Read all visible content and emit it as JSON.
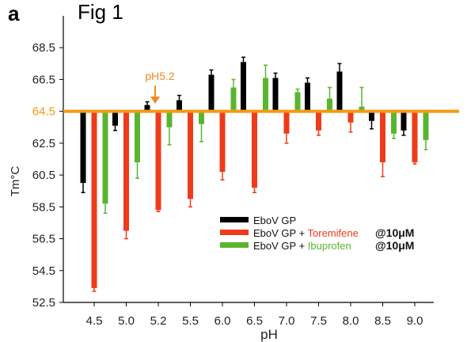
{
  "panel_label": "a",
  "figure_title": "Fig 1",
  "chart_data": {
    "type": "bar",
    "xlabel": "pH",
    "ylabel": "Tm°C",
    "ylim": [
      52.5,
      70.5
    ],
    "baseline": 64.5,
    "yticks": [
      "68.5",
      "66.5",
      "64.5",
      "62.5",
      "60.5",
      "58.5",
      "56.5",
      "54.5",
      "52.5"
    ],
    "categories": [
      "4.5",
      "5.0",
      "5.2",
      "5.5",
      "6.0",
      "6.5",
      "7.0",
      "7.5",
      "8.0",
      "8.5",
      "9.0"
    ],
    "series": [
      {
        "name": "EboV GP",
        "color": "#000000",
        "values": [
          60.0,
          63.6,
          64.9,
          65.2,
          66.8,
          67.6,
          66.6,
          66.3,
          67.0,
          63.9,
          63.3
        ],
        "errors": [
          0.6,
          0.3,
          0.2,
          0.3,
          0.3,
          0.3,
          0.3,
          0.3,
          0.5,
          0.5,
          0.3
        ]
      },
      {
        "name": "EboV GP + Toremifene",
        "color": "#ee3b1b",
        "values": [
          53.4,
          57.0,
          58.3,
          59.0,
          60.7,
          59.7,
          63.1,
          63.3,
          63.8,
          61.3,
          61.3
        ],
        "errors": [
          0.2,
          0.5,
          0.1,
          0.5,
          0.5,
          0.3,
          0.6,
          0.3,
          0.6,
          0.9,
          0.1
        ]
      },
      {
        "name": "EboV GP + Ibuprofen",
        "color": "#5ab52e",
        "values": [
          58.7,
          61.3,
          63.5,
          63.7,
          66.0,
          66.6,
          65.7,
          65.3,
          64.8,
          63.1,
          62.7
        ],
        "errors": [
          0.6,
          1.0,
          1.1,
          1.1,
          0.5,
          0.8,
          0.2,
          0.7,
          1.2,
          0.3,
          0.6
        ]
      }
    ],
    "annotation": {
      "label": "pH5.2",
      "category": "5.2",
      "color": "#f08a24"
    },
    "legend": {
      "position": "bottom-right",
      "entries": [
        {
          "prefix": "EboV GP",
          "drug": "",
          "dose": ""
        },
        {
          "prefix": "EboV GP + ",
          "drug": "Toremifene",
          "dose": "@10μM"
        },
        {
          "prefix": "EboV GP + ",
          "drug": "Ibuprofen",
          "dose": "@10μM"
        }
      ]
    },
    "baseline_color": "#f59a12"
  }
}
